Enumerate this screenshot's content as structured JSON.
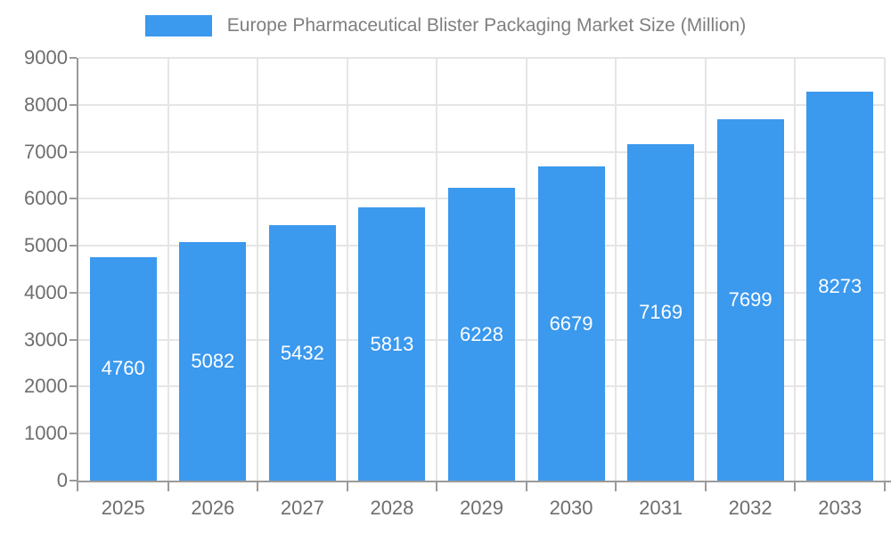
{
  "legend": {
    "label": "Europe Pharmaceutical Blister Packaging Market Size (Million)"
  },
  "colors": {
    "bar": "#3B99EE",
    "grid": "#E5E5E5",
    "axis": "#9A9A9A",
    "tick_label": "#6E6E6E",
    "legend_text": "#7F7F7F",
    "value_label": "#FFFFFF",
    "background": "#FFFFFF"
  },
  "chart_data": {
    "type": "bar",
    "title": "Europe Pharmaceutical Blister Packaging Market Size (Million)",
    "series_name": "Europe Pharmaceutical Blister Packaging Market Size (Million)",
    "categories": [
      "2025",
      "2026",
      "2027",
      "2028",
      "2029",
      "2030",
      "2031",
      "2032",
      "2033"
    ],
    "values": [
      4760,
      5082,
      5432,
      5813,
      6228,
      6679,
      7169,
      7699,
      8273
    ],
    "yticks": [
      "0",
      "1000",
      "2000",
      "3000",
      "4000",
      "5000",
      "6000",
      "7000",
      "8000",
      "9000"
    ],
    "xlabel": "",
    "ylabel": "",
    "ylim": [
      0,
      9000
    ],
    "ytick_step": 1000,
    "grid": true,
    "legend_position": "top",
    "value_label_position": "inside-center"
  }
}
